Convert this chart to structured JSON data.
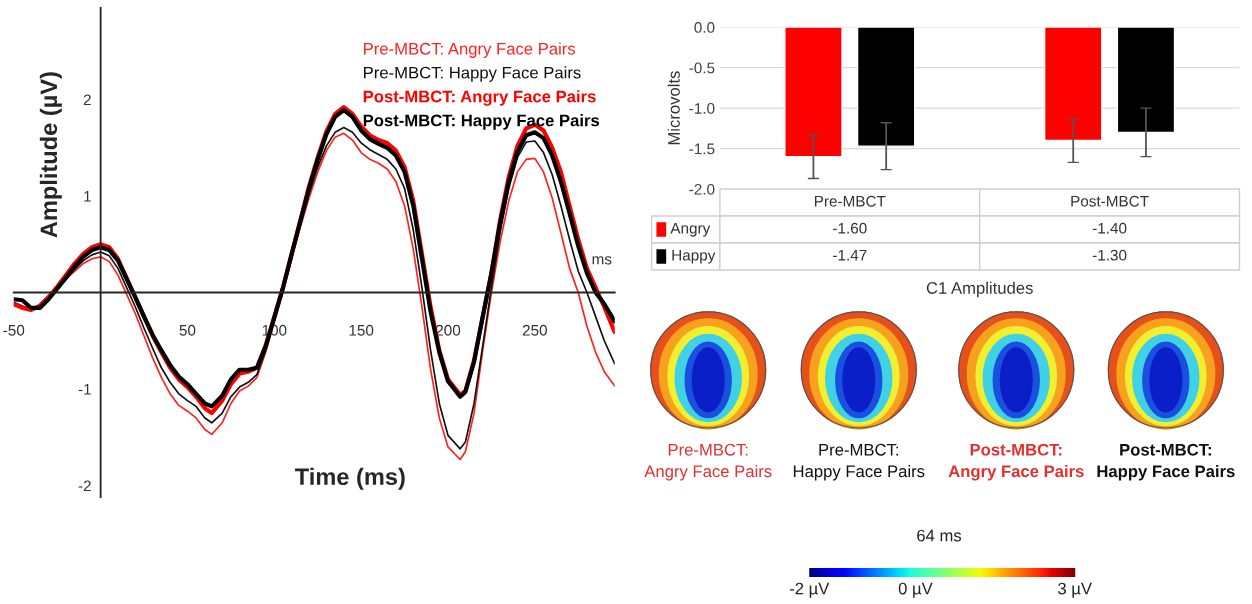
{
  "chart_data": [
    {
      "type": "line",
      "xlabel": "Time (ms)",
      "ylabel": "Amplitude (µV)",
      "x": [
        -50,
        -45,
        -40,
        -35,
        -30,
        -25,
        -20,
        -15,
        -10,
        -5,
        0,
        5,
        10,
        15,
        20,
        25,
        30,
        35,
        40,
        45,
        50,
        55,
        60,
        64,
        70,
        75,
        80,
        85,
        90,
        95,
        100,
        105,
        110,
        115,
        120,
        125,
        130,
        135,
        140,
        145,
        150,
        155,
        160,
        165,
        170,
        175,
        180,
        185,
        190,
        195,
        200,
        207,
        210,
        215,
        220,
        225,
        230,
        235,
        240,
        245,
        250,
        255,
        260,
        265,
        270,
        275,
        280,
        285,
        290,
        296
      ],
      "series": [
        {
          "name": "Pre-MBCT: Angry Face Pairs",
          "color": "#ff2020",
          "values": [
            -0.13,
            -0.17,
            -0.18,
            -0.12,
            -0.03,
            0.06,
            0.14,
            0.22,
            0.3,
            0.35,
            0.37,
            0.32,
            0.18,
            -0.02,
            -0.22,
            -0.45,
            -0.68,
            -0.88,
            -1.05,
            -1.17,
            -1.23,
            -1.3,
            -1.42,
            -1.47,
            -1.35,
            -1.15,
            -1.02,
            -0.97,
            -0.88,
            -0.62,
            -0.3,
            0.02,
            0.35,
            0.68,
            0.98,
            1.25,
            1.47,
            1.61,
            1.65,
            1.58,
            1.45,
            1.38,
            1.34,
            1.28,
            1.15,
            0.9,
            0.45,
            -0.15,
            -0.8,
            -1.3,
            -1.6,
            -1.73,
            -1.65,
            -1.25,
            -0.6,
            0.0,
            0.52,
            0.95,
            1.25,
            1.38,
            1.39,
            1.25,
            0.98,
            0.62,
            0.25,
            0.0,
            -0.35,
            -0.62,
            -0.82,
            -0.97
          ]
        },
        {
          "name": "Pre-MBCT: Happy Face Pairs",
          "color": "#111111",
          "values": [
            -0.1,
            -0.14,
            -0.17,
            -0.14,
            -0.06,
            0.04,
            0.14,
            0.24,
            0.33,
            0.39,
            0.42,
            0.38,
            0.25,
            0.05,
            -0.15,
            -0.37,
            -0.58,
            -0.78,
            -0.93,
            -1.05,
            -1.12,
            -1.18,
            -1.3,
            -1.35,
            -1.25,
            -1.08,
            -0.98,
            -0.93,
            -0.85,
            -0.6,
            -0.28,
            0.03,
            0.37,
            0.7,
            1.02,
            1.3,
            1.52,
            1.66,
            1.71,
            1.66,
            1.55,
            1.48,
            1.43,
            1.38,
            1.28,
            1.08,
            0.65,
            0.05,
            -0.6,
            -1.15,
            -1.48,
            -1.62,
            -1.55,
            -1.15,
            -0.55,
            0.05,
            0.62,
            1.08,
            1.4,
            1.56,
            1.57,
            1.45,
            1.22,
            0.9,
            0.55,
            0.22,
            0.0,
            -0.25,
            -0.5,
            -0.74
          ]
        },
        {
          "name": "Post-MBCT: Angry Face Pairs",
          "color": "#ff0000",
          "values": [
            -0.12,
            -0.16,
            -0.18,
            -0.14,
            -0.05,
            0.06,
            0.18,
            0.3,
            0.4,
            0.47,
            0.5,
            0.47,
            0.35,
            0.15,
            -0.05,
            -0.25,
            -0.45,
            -0.62,
            -0.78,
            -0.9,
            -0.98,
            -1.08,
            -1.2,
            -1.25,
            -1.12,
            -0.95,
            -0.84,
            -0.82,
            -0.78,
            -0.55,
            -0.25,
            0.05,
            0.4,
            0.75,
            1.1,
            1.4,
            1.67,
            1.85,
            1.92,
            1.85,
            1.72,
            1.63,
            1.58,
            1.55,
            1.47,
            1.3,
            0.95,
            0.4,
            -0.15,
            -0.6,
            -0.9,
            -1.06,
            -1.02,
            -0.7,
            -0.25,
            0.2,
            0.75,
            1.2,
            1.52,
            1.7,
            1.74,
            1.68,
            1.5,
            1.25,
            0.9,
            0.55,
            0.25,
            0.05,
            -0.15,
            -0.41
          ]
        },
        {
          "name": "Post-MBCT: Happy Face Pairs",
          "color": "#000000",
          "values": [
            -0.07,
            -0.08,
            -0.16,
            -0.16,
            -0.07,
            0.04,
            0.15,
            0.27,
            0.37,
            0.44,
            0.47,
            0.44,
            0.33,
            0.14,
            -0.05,
            -0.25,
            -0.44,
            -0.6,
            -0.75,
            -0.87,
            -0.95,
            -1.05,
            -1.15,
            -1.18,
            -1.07,
            -0.9,
            -0.8,
            -0.8,
            -0.78,
            -0.56,
            -0.26,
            0.05,
            0.4,
            0.74,
            1.08,
            1.38,
            1.64,
            1.82,
            1.89,
            1.82,
            1.68,
            1.59,
            1.54,
            1.5,
            1.42,
            1.25,
            0.9,
            0.35,
            -0.2,
            -0.62,
            -0.92,
            -1.08,
            -1.03,
            -0.72,
            -0.25,
            0.2,
            0.72,
            1.15,
            1.46,
            1.63,
            1.66,
            1.6,
            1.42,
            1.15,
            0.82,
            0.48,
            0.2,
            0.0,
            -0.12,
            -0.3
          ]
        }
      ],
      "xlim": [
        -50,
        296
      ],
      "ylim": [
        -2.12,
        2.95
      ],
      "xticks": [
        {
          "value": -50,
          "label": "-50"
        },
        50,
        100,
        150,
        200,
        250
      ],
      "annotations": [
        "ms"
      ],
      "yticks": [
        -2,
        -1,
        1,
        2
      ],
      "legend": "top right",
      "grid": false
    },
    {
      "type": "bar",
      "xlabel": "C1 Amplitudes",
      "ylabel": "Microvolts",
      "categories": [
        "Pre-MBCT",
        "Post-MBCT"
      ],
      "series": [
        {
          "name": "Angry",
          "color": "#ff0000",
          "values": [
            -1.6,
            -1.4
          ],
          "errors": [
            0.27,
            0.27
          ],
          "value_labels": [
            "-1.60",
            "-1.40"
          ]
        },
        {
          "name": "Happy",
          "color": "#000000",
          "values": [
            -1.47,
            -1.3
          ],
          "errors": [
            0.29,
            0.3
          ],
          "value_labels": [
            "-1.47",
            "-1.30"
          ]
        }
      ],
      "ylim": [
        -2.0,
        0.0
      ],
      "yticks": [
        {
          "value": -2.0,
          "label": "-2.0"
        },
        {
          "value": -1.5,
          "label": "-1.5"
        },
        {
          "value": -1.0,
          "label": "-1.0"
        },
        {
          "value": -0.5,
          "label": "-0.5"
        },
        {
          "value": 0.0,
          "label": "0.0"
        }
      ],
      "grid": "y",
      "legend": "bottom"
    },
    {
      "type": "other",
      "title": "64 ms",
      "annotations": [
        "Pre-MBCT:\nAngry Face Pairs",
        "Pre-MBCT:\nHappy Face Pairs",
        "Post-MBCT:\nAngry Face Pairs",
        "Post-MBCT:\nHappy Face Pairs",
        "-2 µV",
        "0 µV",
        "3 µV"
      ]
    }
  ]
}
